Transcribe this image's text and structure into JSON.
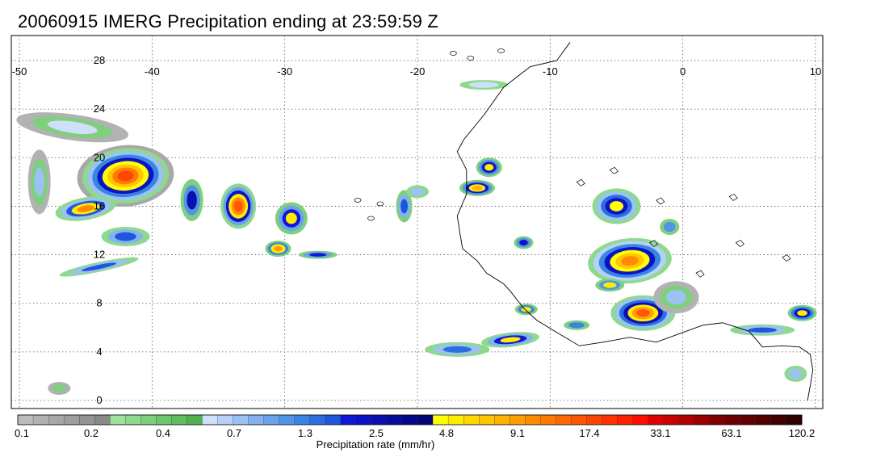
{
  "title": "20060915 IMERG Precipitation ending at 23:59:59 Z",
  "map": {
    "lon_range": [
      -50,
      10
    ],
    "lat_range": [
      0,
      30
    ],
    "lon_ticks": [
      "-50",
      "-40",
      "-30",
      "-20",
      "-10",
      "0",
      "10"
    ],
    "lat_ticks": [
      "28",
      "24",
      "20",
      "16",
      "12",
      "8",
      "4",
      "0"
    ],
    "grid": "dotted",
    "region": "Tropical Atlantic and West Africa"
  },
  "colorbar": {
    "title": "Precipitation rate (mm/hr)",
    "tick_labels": [
      "0.1",
      "0.2",
      "0.4",
      "0.7",
      "1.3",
      "2.5",
      "4.8",
      "9.1",
      "17.4",
      "33.1",
      "63.1",
      "120.2"
    ],
    "colors": [
      "#bdbdbd",
      "#b2b2b2",
      "#a8a8a8",
      "#9e9e9e",
      "#949494",
      "#8a8a8a",
      "#9fe29f",
      "#8fd98f",
      "#7fcf7f",
      "#6fc66f",
      "#5fbd5f",
      "#4fb34f",
      "#cfe0fb",
      "#b6d0f7",
      "#9cc1f3",
      "#83b2ef",
      "#6aa3eb",
      "#5194e7",
      "#3885e3",
      "#2a6ee0",
      "#1f57dc",
      "#1018d8",
      "#0d13c4",
      "#0a0fb0",
      "#070c9c",
      "#050888",
      "#030574",
      "#ffff00",
      "#ffec00",
      "#ffd900",
      "#ffc600",
      "#ffb300",
      "#ffa000",
      "#ff8c00",
      "#ff7a00",
      "#ff6800",
      "#ff5600",
      "#ff4400",
      "#ff3200",
      "#ff2000",
      "#ff0e00",
      "#e00000",
      "#c80000",
      "#b00000",
      "#980000",
      "#800000",
      "#700000",
      "#600000",
      "#500000",
      "#400000",
      "#300000"
    ]
  }
}
